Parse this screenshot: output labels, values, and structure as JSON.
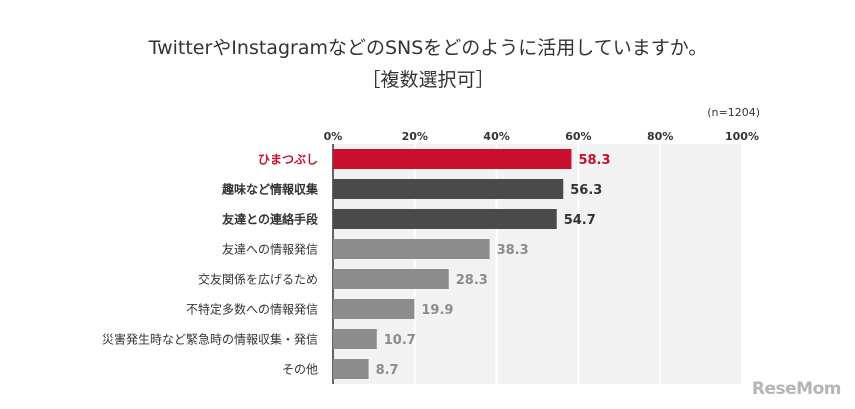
{
  "chart_data": {
    "type": "bar",
    "orientation": "horizontal",
    "title": "TwitterやInstagramなどのSNSをどのように活用していますか。",
    "subtitle": "［複数選択可］",
    "note": "(n=1204)",
    "xlim": [
      0,
      100
    ],
    "x_ticks": [
      "0%",
      "20%",
      "40%",
      "60%",
      "80%",
      "100%"
    ],
    "x_tick_values": [
      0,
      20,
      40,
      60,
      80,
      100
    ],
    "grid": true,
    "categories": [
      "ひまつぶし",
      "趣味など情報収集",
      "友達との連絡手段",
      "友達への情報発信",
      "交友関係を広げるため",
      "不特定多数への情報発信",
      "災害発生時など緊急時の情報収集・発信",
      "その他"
    ],
    "values": [
      58.3,
      56.3,
      54.7,
      38.3,
      28.3,
      19.9,
      10.7,
      8.7
    ],
    "value_labels": [
      "58.3",
      "56.3",
      "54.7",
      "38.3",
      "28.3",
      "19.9",
      "10.7",
      "8.7"
    ],
    "bar_colors": [
      "#c8102e",
      "#4a4a4a",
      "#4a4a4a",
      "#8c8c8c",
      "#8c8c8c",
      "#8c8c8c",
      "#8c8c8c",
      "#8c8c8c"
    ],
    "label_colors": [
      "#c8102e",
      "#333333",
      "#333333",
      "#333333",
      "#333333",
      "#333333",
      "#333333",
      "#333333"
    ],
    "value_colors": [
      "#c8102e",
      "#333333",
      "#333333",
      "#8c8c8c",
      "#8c8c8c",
      "#8c8c8c",
      "#8c8c8c",
      "#8c8c8c"
    ],
    "label_bold": [
      true,
      true,
      true,
      false,
      false,
      false,
      false,
      false
    ],
    "value_bold": [
      true,
      true,
      true,
      true,
      true,
      true,
      true,
      true
    ]
  },
  "brand": {
    "logo_text": "ReseMom"
  },
  "colors": {
    "plot_background": "#f2f2f2",
    "grid": "#ffffff",
    "axis": "#333333"
  }
}
